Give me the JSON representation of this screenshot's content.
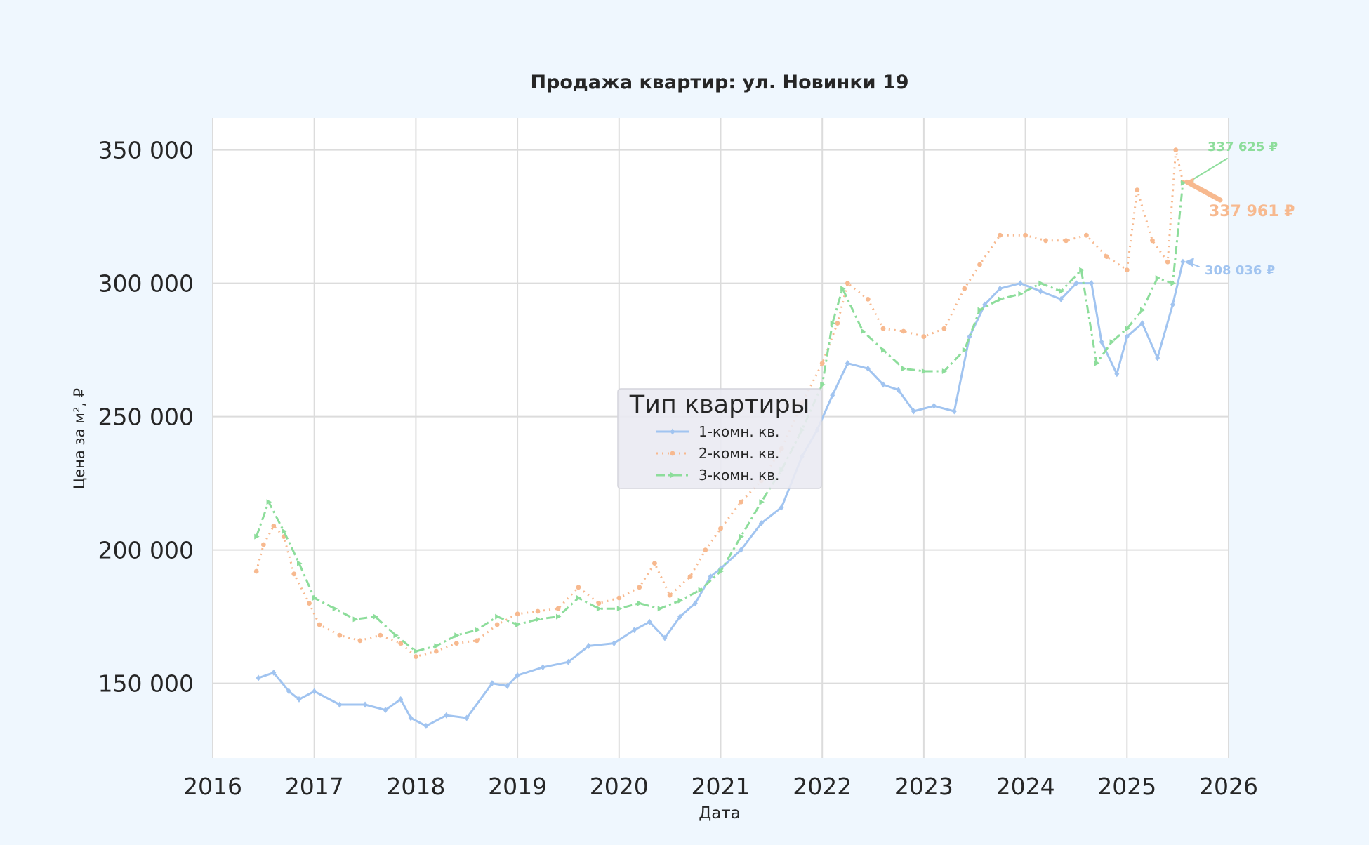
{
  "chart_data": {
    "type": "line",
    "title": "Продажа квартир: ул. Новинки 19",
    "xlabel": "Дата",
    "ylabel": "Цена за м², ₽",
    "x_ticks": [
      "2016",
      "2017",
      "2018",
      "2019",
      "2020",
      "2021",
      "2022",
      "2023",
      "2024",
      "2025",
      "2026"
    ],
    "y_ticks": [
      "150 000",
      "200 000",
      "250 000",
      "300 000",
      "350 000"
    ],
    "xlim": [
      2016.0,
      2026.0
    ],
    "ylim": [
      122000,
      362000
    ],
    "grid": true,
    "legend": {
      "title": "Тип квартиры",
      "placement": "center"
    },
    "series": [
      {
        "name": "1-комн. кв.",
        "color": "#a1c4f0",
        "marker": "diamond",
        "dash": "solid",
        "points": [
          [
            2016.45,
            152000
          ],
          [
            2016.6,
            154000
          ],
          [
            2016.75,
            147000
          ],
          [
            2016.85,
            144000
          ],
          [
            2017.0,
            147000
          ],
          [
            2017.25,
            142000
          ],
          [
            2017.5,
            142000
          ],
          [
            2017.7,
            140000
          ],
          [
            2017.85,
            144000
          ],
          [
            2017.95,
            137000
          ],
          [
            2018.1,
            134000
          ],
          [
            2018.3,
            138000
          ],
          [
            2018.5,
            137000
          ],
          [
            2018.75,
            150000
          ],
          [
            2018.9,
            149000
          ],
          [
            2019.0,
            153000
          ],
          [
            2019.25,
            156000
          ],
          [
            2019.5,
            158000
          ],
          [
            2019.7,
            164000
          ],
          [
            2019.95,
            165000
          ],
          [
            2020.15,
            170000
          ],
          [
            2020.3,
            173000
          ],
          [
            2020.45,
            167000
          ],
          [
            2020.6,
            175000
          ],
          [
            2020.75,
            180000
          ],
          [
            2020.9,
            190000
          ],
          [
            2021.0,
            193000
          ],
          [
            2021.2,
            200000
          ],
          [
            2021.4,
            210000
          ],
          [
            2021.6,
            216000
          ],
          [
            2021.8,
            235000
          ],
          [
            2021.95,
            245000
          ],
          [
            2022.1,
            258000
          ],
          [
            2022.25,
            270000
          ],
          [
            2022.45,
            268000
          ],
          [
            2022.6,
            262000
          ],
          [
            2022.75,
            260000
          ],
          [
            2022.9,
            252000
          ],
          [
            2023.1,
            254000
          ],
          [
            2023.3,
            252000
          ],
          [
            2023.45,
            280000
          ],
          [
            2023.6,
            292000
          ],
          [
            2023.75,
            298000
          ],
          [
            2023.95,
            300000
          ],
          [
            2024.15,
            297000
          ],
          [
            2024.35,
            294000
          ],
          [
            2024.5,
            300000
          ],
          [
            2024.65,
            300000
          ],
          [
            2024.75,
            278000
          ],
          [
            2024.9,
            266000
          ],
          [
            2025.0,
            280000
          ],
          [
            2025.15,
            285000
          ],
          [
            2025.3,
            272000
          ],
          [
            2025.45,
            292000
          ],
          [
            2025.55,
            308036
          ]
        ]
      },
      {
        "name": "2-комн. кв.",
        "color": "#f7b98f",
        "marker": "circle",
        "dash": "dotted",
        "points": [
          [
            2016.43,
            192000
          ],
          [
            2016.5,
            202000
          ],
          [
            2016.6,
            209000
          ],
          [
            2016.7,
            205000
          ],
          [
            2016.8,
            191000
          ],
          [
            2016.95,
            180000
          ],
          [
            2017.05,
            172000
          ],
          [
            2017.25,
            168000
          ],
          [
            2017.45,
            166000
          ],
          [
            2017.65,
            168000
          ],
          [
            2017.85,
            165000
          ],
          [
            2018.0,
            160000
          ],
          [
            2018.2,
            162000
          ],
          [
            2018.4,
            165000
          ],
          [
            2018.6,
            166000
          ],
          [
            2018.8,
            172000
          ],
          [
            2019.0,
            176000
          ],
          [
            2019.2,
            177000
          ],
          [
            2019.4,
            178000
          ],
          [
            2019.6,
            186000
          ],
          [
            2019.8,
            180000
          ],
          [
            2020.0,
            182000
          ],
          [
            2020.2,
            186000
          ],
          [
            2020.35,
            195000
          ],
          [
            2020.5,
            183000
          ],
          [
            2020.7,
            190000
          ],
          [
            2020.85,
            200000
          ],
          [
            2021.0,
            208000
          ],
          [
            2021.2,
            218000
          ],
          [
            2021.4,
            226000
          ],
          [
            2021.6,
            238000
          ],
          [
            2021.8,
            255000
          ],
          [
            2022.0,
            270000
          ],
          [
            2022.15,
            285000
          ],
          [
            2022.25,
            300000
          ],
          [
            2022.45,
            294000
          ],
          [
            2022.6,
            283000
          ],
          [
            2022.8,
            282000
          ],
          [
            2023.0,
            280000
          ],
          [
            2023.2,
            283000
          ],
          [
            2023.4,
            298000
          ],
          [
            2023.55,
            307000
          ],
          [
            2023.75,
            318000
          ],
          [
            2024.0,
            318000
          ],
          [
            2024.2,
            316000
          ],
          [
            2024.4,
            316000
          ],
          [
            2024.6,
            318000
          ],
          [
            2024.8,
            310000
          ],
          [
            2025.0,
            305000
          ],
          [
            2025.1,
            335000
          ],
          [
            2025.25,
            316000
          ],
          [
            2025.4,
            308000
          ],
          [
            2025.48,
            350000
          ],
          [
            2025.55,
            337961
          ]
        ]
      },
      {
        "name": "3-комн. кв.",
        "color": "#8ddd9b",
        "marker": "triangle",
        "dash": "dashdot",
        "points": [
          [
            2016.43,
            205000
          ],
          [
            2016.55,
            218000
          ],
          [
            2016.7,
            207000
          ],
          [
            2016.85,
            195000
          ],
          [
            2017.0,
            182000
          ],
          [
            2017.2,
            178000
          ],
          [
            2017.4,
            174000
          ],
          [
            2017.6,
            175000
          ],
          [
            2017.8,
            168000
          ],
          [
            2018.0,
            162000
          ],
          [
            2018.2,
            164000
          ],
          [
            2018.4,
            168000
          ],
          [
            2018.6,
            170000
          ],
          [
            2018.8,
            175000
          ],
          [
            2019.0,
            172000
          ],
          [
            2019.2,
            174000
          ],
          [
            2019.4,
            175000
          ],
          [
            2019.6,
            182000
          ],
          [
            2019.8,
            178000
          ],
          [
            2020.0,
            178000
          ],
          [
            2020.2,
            180000
          ],
          [
            2020.4,
            178000
          ],
          [
            2020.6,
            181000
          ],
          [
            2020.8,
            185000
          ],
          [
            2021.0,
            192000
          ],
          [
            2021.2,
            205000
          ],
          [
            2021.4,
            218000
          ],
          [
            2021.6,
            230000
          ],
          [
            2021.8,
            245000
          ],
          [
            2022.0,
            262000
          ],
          [
            2022.1,
            285000
          ],
          [
            2022.2,
            298000
          ],
          [
            2022.4,
            282000
          ],
          [
            2022.6,
            275000
          ],
          [
            2022.8,
            268000
          ],
          [
            2023.0,
            267000
          ],
          [
            2023.2,
            267000
          ],
          [
            2023.4,
            275000
          ],
          [
            2023.55,
            290000
          ],
          [
            2023.75,
            294000
          ],
          [
            2023.95,
            296000
          ],
          [
            2024.15,
            300000
          ],
          [
            2024.35,
            297000
          ],
          [
            2024.55,
            305000
          ],
          [
            2024.7,
            270000
          ],
          [
            2024.85,
            278000
          ],
          [
            2025.0,
            283000
          ],
          [
            2025.15,
            290000
          ],
          [
            2025.3,
            302000
          ],
          [
            2025.45,
            300000
          ],
          [
            2025.55,
            337625
          ]
        ]
      }
    ],
    "annotations": [
      {
        "text": "337 625 ₽",
        "series": "3-комн. кв."
      },
      {
        "text": "337 961 ₽",
        "series": "2-комн. кв."
      },
      {
        "text": "308 036 ₽",
        "series": "1-комн. кв."
      }
    ]
  }
}
